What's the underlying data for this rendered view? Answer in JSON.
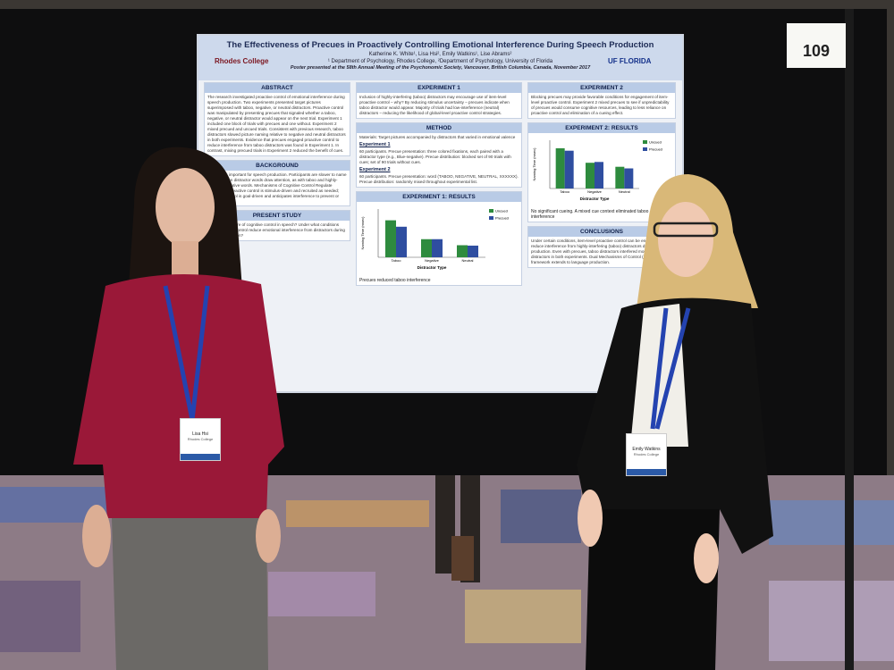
{
  "board_number": "109",
  "poster": {
    "title": "The Effectiveness of Precues in Proactively Controlling Emotional Interference During Speech Production",
    "authors": "Katherine K. White¹, Lisa Hsi², Emily Watkins¹, Lise Abrams²",
    "affiliations": "¹ Department of Psychology, Rhodes College, ²Department of Psychology, University of Florida",
    "presented": "Poster presented at the 58th Annual Meeting of the Psychonomic Society, Vancouver, British Columbia, Canada, November 2017",
    "logo_left": "Rhodes College",
    "logo_right": "UF FLORIDA",
    "abstract": {
      "heading": "ABSTRACT",
      "text": "The research investigated proactive control of emotional interference during speech production. Two experiments presented target pictures superimposed with taboo, negative, or neutral distractors. Proactive control was manipulated by presenting precues that signaled whether a taboo, negative, or neutral distractor would appear on the next trial. Experiment 1 included one block of trials with precues and one without. Experiment 2 mixed precued and uncued trials. Consistent with previous research, taboo distractors slowed picture naming relative to negative and neutral distractors in both experiments. Evidence that precues engaged proactive control to reduce interference from taboo distractors was found in Experiment 1. In contrast, mixing precued trials in Experiment 2 reduced the benefit of cues."
    },
    "background": {
      "heading": "BACKGROUND",
      "text": "Attention is important for speech production. Participants are slower to name pictures when distractor words draw attention, as with taboo and highly-arousing negative words. Mechanisms of Cognitive Control Regulate Interference: reactive control is stimulus-driven and recruited as needed; proactive control is goal-driven and anticipates interference to prevent or minimize it."
    },
    "present_study": {
      "heading": "PRESENT STUDY",
      "text": "What is the nature of cognitive control in speech? Under what conditions does proactive control reduce emotional interference from distractors during speech production?"
    },
    "experiment1": {
      "heading": "EXPERIMENT 1",
      "text": "Inclusion of highly-interfering (taboo) distractors may encourage use of item-level proactive control – why? By reducing stimulus uncertainty – precues indicate when taboo distractor would appear. Majority of trials had low-interference (neutral) distractors – reducing the likelihood of global-level proactive control strategies."
    },
    "method": {
      "heading": "METHOD",
      "text": "Materials: Target pictures accompanied by distractors that varied in emotional valence"
    },
    "exp1_method": {
      "heading": "Experiment 1",
      "text": "60 participants. Precue presentation: three colored fixations, each paired with a distractor type (e.g., Blue-negative). Precue distribution: blocked set of 90 trials with cues; set of 90 trials without cues."
    },
    "exp2_method": {
      "heading": "Experiment 2",
      "text": "60 participants. Precue presentation: word (TABOO, NEGATIVE, NEUTRAL, XXXXXX). Precue distribution: randomly mixed throughout experimental list."
    },
    "experiment2": {
      "heading": "EXPERIMENT 2",
      "text": "Blocking precues may provide favorable conditions for engagement of item-level proactive control. Experiment 2 mixed precues to see if unpredictability of precues would consume cognitive resources, leading to less reliance on proactive control and elimination of a cueing effect."
    },
    "exp1_note": "Precues reduced taboo interference",
    "exp2_note": "No significant cueing. A mixed cue context eliminated taboo interference",
    "conclusions": {
      "heading": "CONCLUSIONS",
      "text": "Under certain conditions, item-level proactive control can be engaged to reduce interference from highly-interfering (taboo) distractors during speech production. Even with precues, taboo distractors interfered more than other distractors in both experiments. Dual Mechanisms of Control (DMC) framework extends to language production."
    },
    "charts": [
      {
        "type": "bar",
        "title": "EXPERIMENT 1: RESULTS",
        "y_label": "Naming Time (msec)",
        "x_label": "Distractor Type",
        "categories": [
          "Taboo",
          "Negative",
          "Neutral"
        ],
        "ylim": [
          0,
          1200
        ],
        "series": [
          {
            "name": "Uncued",
            "color": "#2e8b3e",
            "values": [
              920,
              450,
              300
            ]
          },
          {
            "name": "Precued",
            "color": "#2f4ea0",
            "values": [
              760,
              450,
              290
            ]
          }
        ]
      },
      {
        "type": "bar",
        "title": "EXPERIMENT 2: RESULTS",
        "y_label": "Naming Time (msec)",
        "x_label": "Distractor Type",
        "categories": [
          "Taboo",
          "Negative",
          "Neutral"
        ],
        "ylim": [
          0,
          1200
        ],
        "series": [
          {
            "name": "Uncued",
            "color": "#2e8b3e",
            "values": [
              1000,
              640,
              540
            ]
          },
          {
            "name": "Precued",
            "color": "#2f4ea0",
            "values": [
              940,
              660,
              500
            ]
          }
        ]
      }
    ]
  },
  "badges": [
    {
      "name": "Lisa Hsi",
      "org": "Rhodes College"
    },
    {
      "name": "Emily Watkins",
      "org": "Rhodes College"
    }
  ]
}
